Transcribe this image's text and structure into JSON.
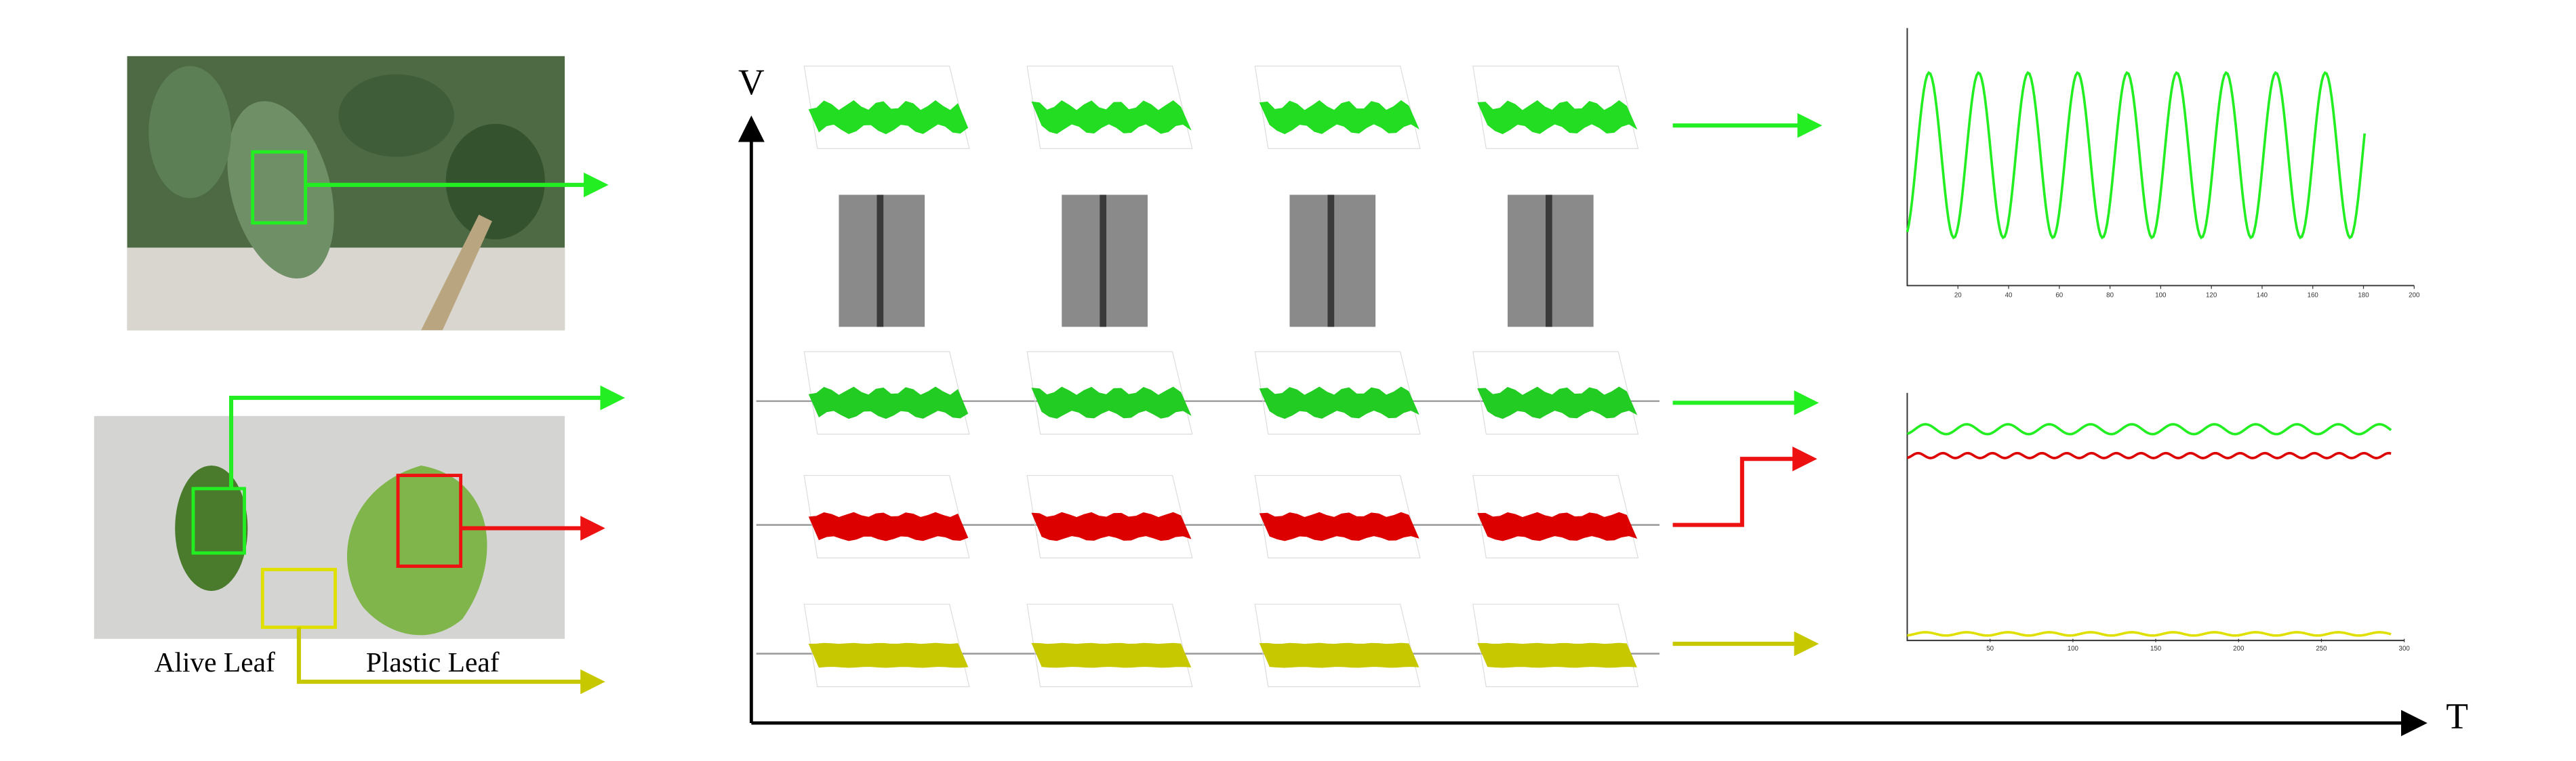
{
  "labels": {
    "alive_leaf": "Alive Leaf",
    "plastic_leaf": "Plastic Leaf"
  },
  "axes": {
    "vertical": "V",
    "horizontal": "T"
  },
  "plots": [
    {
      "xticks": [
        20,
        40,
        60,
        80,
        100,
        120,
        140,
        160,
        180,
        200
      ]
    },
    {
      "xticks": [
        50,
        100,
        150,
        200,
        250,
        300
      ]
    }
  ]
}
